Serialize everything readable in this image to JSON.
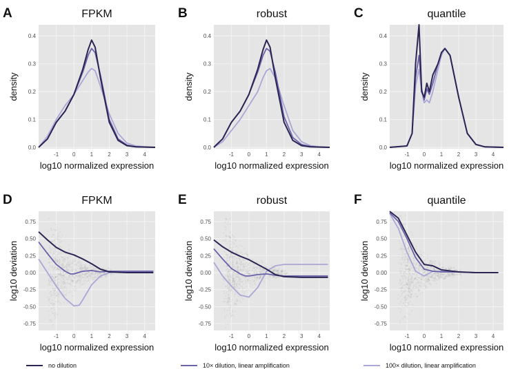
{
  "colors": {
    "panel_bg": "#e5e5e5",
    "grid": "#f2f2f2",
    "tick_text": "#4d4d4d",
    "no_dilution": "#2b2553",
    "dil10": "#6a62a8",
    "dil100": "#aaa6d6",
    "scatter": "#6e6e6e"
  },
  "legend": [
    {
      "label": "no dilution",
      "color": "#2b2553"
    },
    {
      "label": "10× dilution, linear amplification",
      "color": "#6a62a8"
    },
    {
      "label": "100× dilution, linear amplification",
      "color": "#aaa6d6"
    }
  ],
  "chart_data": [
    {
      "panel": "A",
      "title": "FPKM",
      "type": "line",
      "xlabel": "log10 normalized expression",
      "ylabel": "density",
      "xlim": [
        -2,
        4.6
      ],
      "ylim": [
        -0.005,
        0.44
      ],
      "xticks": [
        -1,
        0,
        1,
        2,
        3,
        4
      ],
      "yticks": [
        0.0,
        0.1,
        0.2,
        0.3,
        0.4
      ],
      "ytick_labels": [
        "0.0",
        "0.1",
        "0.2",
        "0.3",
        "0.4"
      ],
      "series": [
        {
          "x": [
            -2,
            -1.5,
            -1,
            -0.5,
            0,
            0.5,
            0.8,
            1,
            1.2,
            1.5,
            2,
            2.5,
            3,
            3.5,
            4,
            4.6
          ],
          "y": [
            0,
            0.03,
            0.09,
            0.13,
            0.19,
            0.28,
            0.35,
            0.385,
            0.36,
            0.25,
            0.09,
            0.025,
            0.006,
            0.002,
            0.001,
            0
          ]
        },
        {
          "x": [
            -2,
            -1.5,
            -1,
            -0.5,
            0,
            0.5,
            0.8,
            1,
            1.2,
            1.5,
            2,
            2.5,
            3,
            3.5,
            4,
            4.6
          ],
          "y": [
            0,
            0.03,
            0.09,
            0.13,
            0.19,
            0.27,
            0.33,
            0.355,
            0.34,
            0.26,
            0.1,
            0.03,
            0.008,
            0.002,
            0.001,
            0
          ]
        },
        {
          "x": [
            -2,
            -1.5,
            -1,
            -0.5,
            0,
            0.5,
            0.8,
            1,
            1.2,
            1.5,
            2,
            2.5,
            3,
            3.5,
            4,
            4.6
          ],
          "y": [
            0,
            0.04,
            0.1,
            0.15,
            0.19,
            0.24,
            0.27,
            0.283,
            0.275,
            0.22,
            0.12,
            0.05,
            0.015,
            0.005,
            0.002,
            0
          ]
        }
      ]
    },
    {
      "panel": "B",
      "title": "robust",
      "type": "line",
      "xlabel": "log10 normalized expression",
      "ylabel": "density",
      "xlim": [
        -2,
        4.6
      ],
      "ylim": [
        -0.005,
        0.44
      ],
      "xticks": [
        -1,
        0,
        1,
        2,
        3,
        4
      ],
      "yticks": [
        0.0,
        0.1,
        0.2,
        0.3,
        0.4
      ],
      "ytick_labels": [
        "0.0",
        "0.1",
        "0.2",
        "0.3",
        "0.4"
      ],
      "series": [
        {
          "x": [
            -2,
            -1.5,
            -1,
            -0.5,
            0,
            0.5,
            0.8,
            1,
            1.2,
            1.5,
            2,
            2.5,
            3,
            3.5,
            4,
            4.6
          ],
          "y": [
            0,
            0.03,
            0.09,
            0.13,
            0.19,
            0.28,
            0.35,
            0.385,
            0.36,
            0.25,
            0.09,
            0.025,
            0.006,
            0.002,
            0.001,
            0
          ]
        },
        {
          "x": [
            -2,
            -1.5,
            -1,
            -0.5,
            0,
            0.5,
            0.8,
            1,
            1.2,
            1.5,
            2,
            2.5,
            3,
            3.5,
            4,
            4.6
          ],
          "y": [
            0,
            0.03,
            0.09,
            0.13,
            0.19,
            0.27,
            0.33,
            0.355,
            0.345,
            0.27,
            0.11,
            0.035,
            0.01,
            0.003,
            0.001,
            0
          ]
        },
        {
          "x": [
            -2,
            -1.5,
            -1,
            -0.5,
            0,
            0.5,
            0.8,
            1,
            1.2,
            1.5,
            2,
            2.5,
            3,
            3.5,
            4,
            4.6
          ],
          "y": [
            0,
            0.02,
            0.06,
            0.1,
            0.15,
            0.2,
            0.25,
            0.275,
            0.283,
            0.25,
            0.15,
            0.06,
            0.02,
            0.006,
            0.002,
            0
          ]
        }
      ]
    },
    {
      "panel": "C",
      "title": "quantile",
      "type": "line",
      "xlabel": "log10 normalized expression",
      "ylabel": "density",
      "xlim": [
        -2,
        4.6
      ],
      "ylim": [
        -0.005,
        0.44
      ],
      "xticks": [
        -1,
        0,
        1,
        2,
        3,
        4
      ],
      "yticks": [
        0.0,
        0.1,
        0.2,
        0.3,
        0.4
      ],
      "ytick_labels": [
        "0.0",
        "0.1",
        "0.2",
        "0.3",
        "0.4"
      ],
      "series": [
        {
          "x": [
            -2,
            -1,
            -0.7,
            -0.5,
            -0.3,
            -0.15,
            0,
            0.15,
            0.3,
            0.5,
            0.8,
            1,
            1.2,
            1.5,
            2,
            2.5,
            3,
            3.5,
            4,
            4.6
          ],
          "y": [
            0,
            0.005,
            0.05,
            0.3,
            0.44,
            0.2,
            0.18,
            0.23,
            0.2,
            0.26,
            0.3,
            0.34,
            0.355,
            0.33,
            0.18,
            0.05,
            0.01,
            0.002,
            0.001,
            0
          ]
        },
        {
          "x": [
            -2,
            -1,
            -0.7,
            -0.5,
            -0.3,
            -0.15,
            0,
            0.15,
            0.3,
            0.5,
            0.8,
            1,
            1.2,
            1.5,
            2,
            2.5,
            3,
            3.5,
            4,
            4.6
          ],
          "y": [
            0,
            0.005,
            0.05,
            0.25,
            0.33,
            0.21,
            0.17,
            0.21,
            0.19,
            0.23,
            0.3,
            0.34,
            0.355,
            0.33,
            0.18,
            0.05,
            0.01,
            0.002,
            0.001,
            0
          ]
        },
        {
          "x": [
            -2,
            -1,
            -0.7,
            -0.5,
            -0.3,
            -0.15,
            0,
            0.15,
            0.3,
            0.5,
            0.8,
            1,
            1.2,
            1.5,
            2,
            2.5,
            3,
            3.5,
            4,
            4.6
          ],
          "y": [
            0,
            0.005,
            0.05,
            0.22,
            0.28,
            0.2,
            0.16,
            0.17,
            0.16,
            0.2,
            0.28,
            0.33,
            0.355,
            0.33,
            0.18,
            0.05,
            0.01,
            0.002,
            0.001,
            0
          ]
        }
      ]
    },
    {
      "panel": "D",
      "title": "FPKM",
      "type": "scatter+line",
      "xlabel": "log10 normalized expression",
      "ylabel": "log10 deviation",
      "xlim": [
        -2,
        4.6
      ],
      "ylim": [
        -0.85,
        0.9
      ],
      "xticks": [
        -1,
        0,
        1,
        2,
        3,
        4
      ],
      "yticks": [
        -0.75,
        -0.5,
        -0.25,
        0.0,
        0.25,
        0.5,
        0.75
      ],
      "ytick_labels": [
        "-0.75",
        "-0.50",
        "-0.25",
        "0.00",
        "0.25",
        "0.50",
        "0.75"
      ],
      "series": [
        {
          "x": [
            -2,
            -1.5,
            -1,
            -0.5,
            0,
            0.5,
            1,
            1.5,
            2,
            3,
            4.5
          ],
          "y": [
            0.6,
            0.48,
            0.37,
            0.3,
            0.26,
            0.2,
            0.13,
            0.05,
            0.01,
            0.0,
            0.0
          ]
        },
        {
          "x": [
            -2,
            -1.5,
            -1,
            -0.5,
            -0.2,
            0,
            0.5,
            1,
            1.5,
            2,
            3,
            4.5
          ],
          "y": [
            0.45,
            0.28,
            0.12,
            0.02,
            -0.02,
            -0.02,
            0.02,
            0.03,
            0.01,
            0.02,
            0.02,
            0.02
          ]
        },
        {
          "x": [
            -2,
            -1.5,
            -1,
            -0.5,
            0,
            0.3,
            0.5,
            1,
            1.5,
            2,
            3,
            4.5
          ],
          "y": [
            0.2,
            0.0,
            -0.2,
            -0.38,
            -0.49,
            -0.48,
            -0.4,
            -0.18,
            -0.05,
            0.0,
            0.02,
            0.02
          ]
        }
      ]
    },
    {
      "panel": "E",
      "title": "robust",
      "type": "scatter+line",
      "xlabel": "log10 normalized expression",
      "ylabel": "log10 deviation",
      "xlim": [
        -2,
        4.6
      ],
      "ylim": [
        -0.85,
        0.9
      ],
      "xticks": [
        -1,
        0,
        1,
        2,
        3,
        4
      ],
      "yticks": [
        -0.75,
        -0.5,
        -0.25,
        0.0,
        0.25,
        0.5,
        0.75
      ],
      "ytick_labels": [
        "-0.75",
        "-0.50",
        "-0.25",
        "0.00",
        "0.25",
        "0.50",
        "0.75"
      ],
      "series": [
        {
          "x": [
            -2,
            -1.5,
            -1,
            -0.5,
            0,
            0.5,
            1,
            1.5,
            2,
            3,
            4.5
          ],
          "y": [
            0.48,
            0.38,
            0.3,
            0.24,
            0.19,
            0.12,
            0.05,
            -0.03,
            -0.06,
            -0.07,
            -0.07
          ]
        },
        {
          "x": [
            -2,
            -1.5,
            -1,
            -0.5,
            -0.2,
            0,
            0.5,
            1,
            1.5,
            2,
            3,
            4.5
          ],
          "y": [
            0.35,
            0.2,
            0.06,
            -0.02,
            -0.05,
            -0.05,
            -0.03,
            -0.02,
            -0.04,
            -0.05,
            -0.05,
            -0.05
          ]
        },
        {
          "x": [
            -2,
            -1.5,
            -1,
            -0.5,
            0,
            0.5,
            1,
            1.5,
            2,
            3,
            4.5
          ],
          "y": [
            0.15,
            -0.05,
            -0.2,
            -0.33,
            -0.36,
            -0.22,
            0.02,
            0.1,
            0.12,
            0.12,
            0.12
          ]
        }
      ]
    },
    {
      "panel": "F",
      "title": "quantile",
      "type": "scatter+line",
      "xlabel": "log10 normalized expression",
      "ylabel": "log10 deviation",
      "xlim": [
        -2,
        4.6
      ],
      "ylim": [
        -0.85,
        0.9
      ],
      "xticks": [
        -1,
        0,
        1,
        2,
        3,
        4
      ],
      "yticks": [
        -0.75,
        -0.5,
        -0.25,
        0.0,
        0.25,
        0.5,
        0.75
      ],
      "ytick_labels": [
        "-0.75",
        "-0.50",
        "-0.25",
        "0.00",
        "0.25",
        "0.50",
        "0.75"
      ],
      "series": [
        {
          "x": [
            -2,
            -1.5,
            -1,
            -0.5,
            0,
            0.5,
            1,
            2,
            3,
            4.3
          ],
          "y": [
            0.9,
            0.8,
            0.55,
            0.3,
            0.12,
            0.1,
            0.04,
            0.01,
            0.0,
            0.0
          ]
        },
        {
          "x": [
            -2,
            -1.5,
            -1,
            -0.5,
            0,
            0.5,
            1,
            2,
            3,
            4.3
          ],
          "y": [
            0.88,
            0.75,
            0.5,
            0.22,
            0.05,
            0.02,
            0.01,
            0.01,
            0.0,
            0.0
          ]
        },
        {
          "x": [
            -2,
            -1.5,
            -1,
            -0.5,
            0,
            0.5,
            1,
            2,
            3,
            4.3
          ],
          "y": [
            0.87,
            0.65,
            0.3,
            0.02,
            -0.05,
            0.02,
            0.02,
            0.01,
            0.0,
            0.0
          ]
        }
      ]
    }
  ]
}
